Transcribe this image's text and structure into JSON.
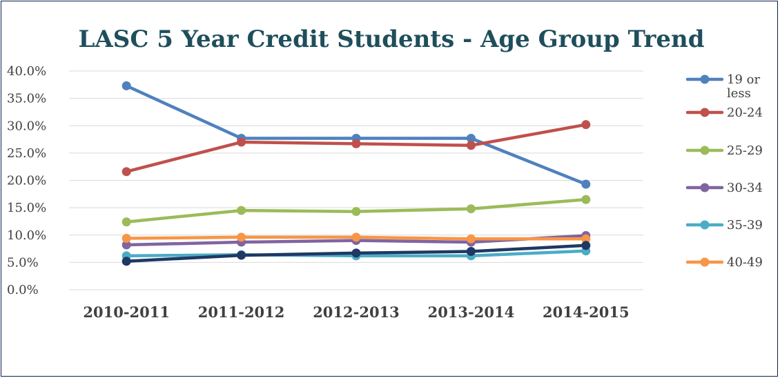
{
  "chart_data": {
    "type": "line",
    "title": "LASC 5 Year Credit Students - Age Group Trend",
    "categories": [
      "2010-2011",
      "2011-2012",
      "2012-2013",
      "2013-2014",
      "2014-2015"
    ],
    "y_ticks": [
      "0.0%",
      "5.0%",
      "10.0%",
      "15.0%",
      "20.0%",
      "25.0%",
      "30.0%",
      "35.0%",
      "40.0%"
    ],
    "ylim": [
      0,
      40
    ],
    "grid": true,
    "legend_position": "right",
    "series": [
      {
        "name": "19 or less",
        "color": "#4f81bd",
        "values": [
          37.3,
          27.7,
          27.7,
          27.7,
          19.3
        ]
      },
      {
        "name": "20-24",
        "color": "#c0504d",
        "values": [
          21.6,
          27.0,
          26.7,
          26.4,
          30.2
        ]
      },
      {
        "name": "25-29",
        "color": "#9bbb59",
        "values": [
          12.4,
          14.5,
          14.3,
          14.8,
          16.5
        ]
      },
      {
        "name": "30-34",
        "color": "#8064a2",
        "values": [
          8.2,
          8.7,
          9.0,
          8.7,
          9.9
        ]
      },
      {
        "name": "35-39",
        "color": "#4bacc6",
        "values": [
          6.2,
          6.4,
          6.2,
          6.2,
          7.1
        ]
      },
      {
        "name": "40-49",
        "color": "#f79646",
        "values": [
          9.4,
          9.6,
          9.6,
          9.3,
          9.3
        ]
      },
      {
        "name": "",
        "color": "#1f3864",
        "values": [
          5.2,
          6.3,
          6.7,
          7.0,
          8.1
        ]
      }
    ]
  }
}
